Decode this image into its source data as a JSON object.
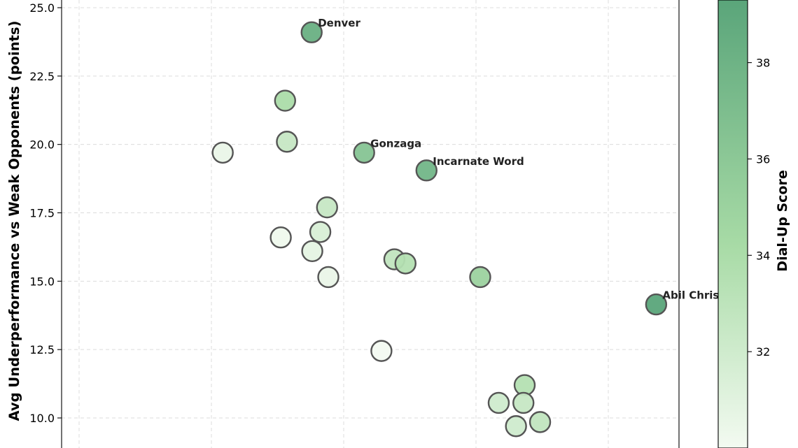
{
  "chart_data": {
    "type": "scatter",
    "ylabel": "Avg Underperformance vs Weak Opponents (points)",
    "y_ticks": [
      "10.0",
      "12.5",
      "15.0",
      "17.5",
      "20.0",
      "22.5",
      "25.0"
    ],
    "ylim": [
      9.0,
      25.3
    ],
    "xlim": [
      0,
      1
    ],
    "grid": true,
    "colorbar": {
      "label": "Dial-Up Score",
      "ticks": [
        "32",
        "34",
        "36",
        "38"
      ],
      "range": [
        30.0,
        39.3
      ],
      "cmap_light": "#f3faf1",
      "cmap_mid": "#a8dba6",
      "cmap_dark": "#5aa57a"
    },
    "points": [
      {
        "x": 0.405,
        "y": 24.1,
        "score": 38.3,
        "label": "Denver"
      },
      {
        "x": 0.362,
        "y": 21.6,
        "score": 34.0,
        "label": ""
      },
      {
        "x": 0.365,
        "y": 20.1,
        "score": 32.5,
        "label": ""
      },
      {
        "x": 0.261,
        "y": 19.7,
        "score": 30.5,
        "label": ""
      },
      {
        "x": 0.49,
        "y": 19.7,
        "score": 36.4,
        "label": "Gonzaga"
      },
      {
        "x": 0.591,
        "y": 19.05,
        "score": 37.7,
        "label": "Incarnate Word"
      },
      {
        "x": 0.43,
        "y": 17.7,
        "score": 32.5,
        "label": ""
      },
      {
        "x": 0.419,
        "y": 16.8,
        "score": 31.5,
        "label": ""
      },
      {
        "x": 0.355,
        "y": 16.6,
        "score": 30.2,
        "label": ""
      },
      {
        "x": 0.406,
        "y": 16.1,
        "score": 30.8,
        "label": ""
      },
      {
        "x": 0.539,
        "y": 15.8,
        "score": 32.8,
        "label": ""
      },
      {
        "x": 0.557,
        "y": 15.65,
        "score": 33.5,
        "label": ""
      },
      {
        "x": 0.432,
        "y": 15.15,
        "score": 30.5,
        "label": ""
      },
      {
        "x": 0.678,
        "y": 15.15,
        "score": 35.0,
        "label": ""
      },
      {
        "x": 0.963,
        "y": 14.15,
        "score": 39.8,
        "label": "Abil Christ"
      },
      {
        "x": 0.518,
        "y": 12.45,
        "score": 30.0,
        "label": ""
      },
      {
        "x": 0.75,
        "y": 11.2,
        "score": 33.5,
        "label": ""
      },
      {
        "x": 0.708,
        "y": 10.55,
        "score": 32.0,
        "label": ""
      },
      {
        "x": 0.748,
        "y": 10.55,
        "score": 32.5,
        "label": ""
      },
      {
        "x": 0.775,
        "y": 9.85,
        "score": 32.8,
        "label": ""
      },
      {
        "x": 0.736,
        "y": 9.7,
        "score": 32.0,
        "label": ""
      }
    ]
  }
}
